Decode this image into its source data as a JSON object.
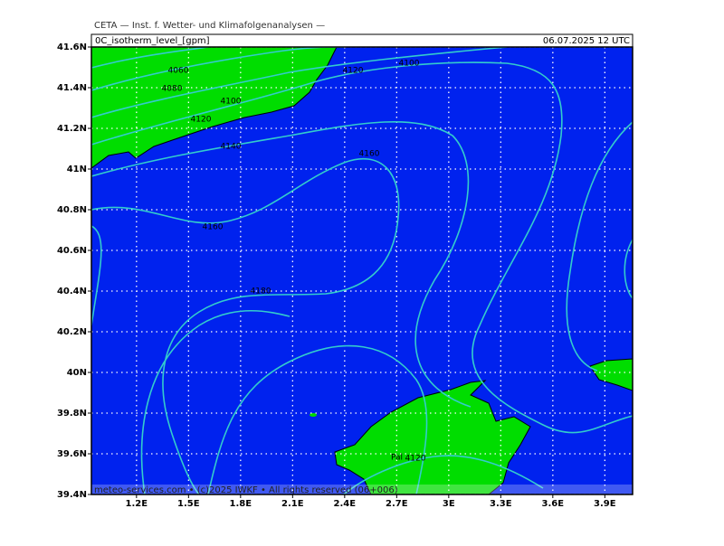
{
  "header": {
    "title": "CETA — Inst. f. Wetter- und Klimafolgenanalysen —",
    "parameter": "0C_isotherm_level_[gpm]",
    "valid_time": "06.07.2025 12 UTC"
  },
  "map": {
    "lat_range": [
      39.4,
      41.6
    ],
    "lon_range": [
      0.94,
      4.06
    ],
    "lat_ticks": [
      {
        "value": 41.6,
        "label": "41.6N"
      },
      {
        "value": 41.4,
        "label": "41.4N"
      },
      {
        "value": 41.2,
        "label": "41.2N"
      },
      {
        "value": 41,
        "label": "41N"
      },
      {
        "value": 40.8,
        "label": "40.8N"
      },
      {
        "value": 40.6,
        "label": "40.6N"
      },
      {
        "value": 40.4,
        "label": "40.4N"
      },
      {
        "value": 40.2,
        "label": "40.2N"
      },
      {
        "value": 40,
        "label": "40N"
      },
      {
        "value": 39.8,
        "label": "39.8N"
      },
      {
        "value": 39.6,
        "label": "39.6N"
      },
      {
        "value": 39.4,
        "label": "39.4N"
      }
    ],
    "lon_ticks": [
      {
        "value": 1.2,
        "label": "1.2E"
      },
      {
        "value": 1.5,
        "label": "1.5E"
      },
      {
        "value": 1.8,
        "label": "1.8E"
      },
      {
        "value": 2.1,
        "label": "2.1E"
      },
      {
        "value": 2.4,
        "label": "2.4E"
      },
      {
        "value": 2.7,
        "label": "2.7E"
      },
      {
        "value": 3,
        "label": "3E"
      },
      {
        "value": 3.3,
        "label": "3.3E"
      },
      {
        "value": 3.6,
        "label": "3.6E"
      },
      {
        "value": 3.9,
        "label": "3.9E"
      }
    ],
    "contour_labels": [
      "4060",
      "4080",
      "4100",
      "4120",
      "4140",
      "4120",
      "4100",
      "4160",
      "4160",
      "4180",
      "4120"
    ],
    "place_label": "Pal"
  },
  "footer": "meteo-services.com • (c)2025 IWKF • All rights reserved (06+006)"
}
